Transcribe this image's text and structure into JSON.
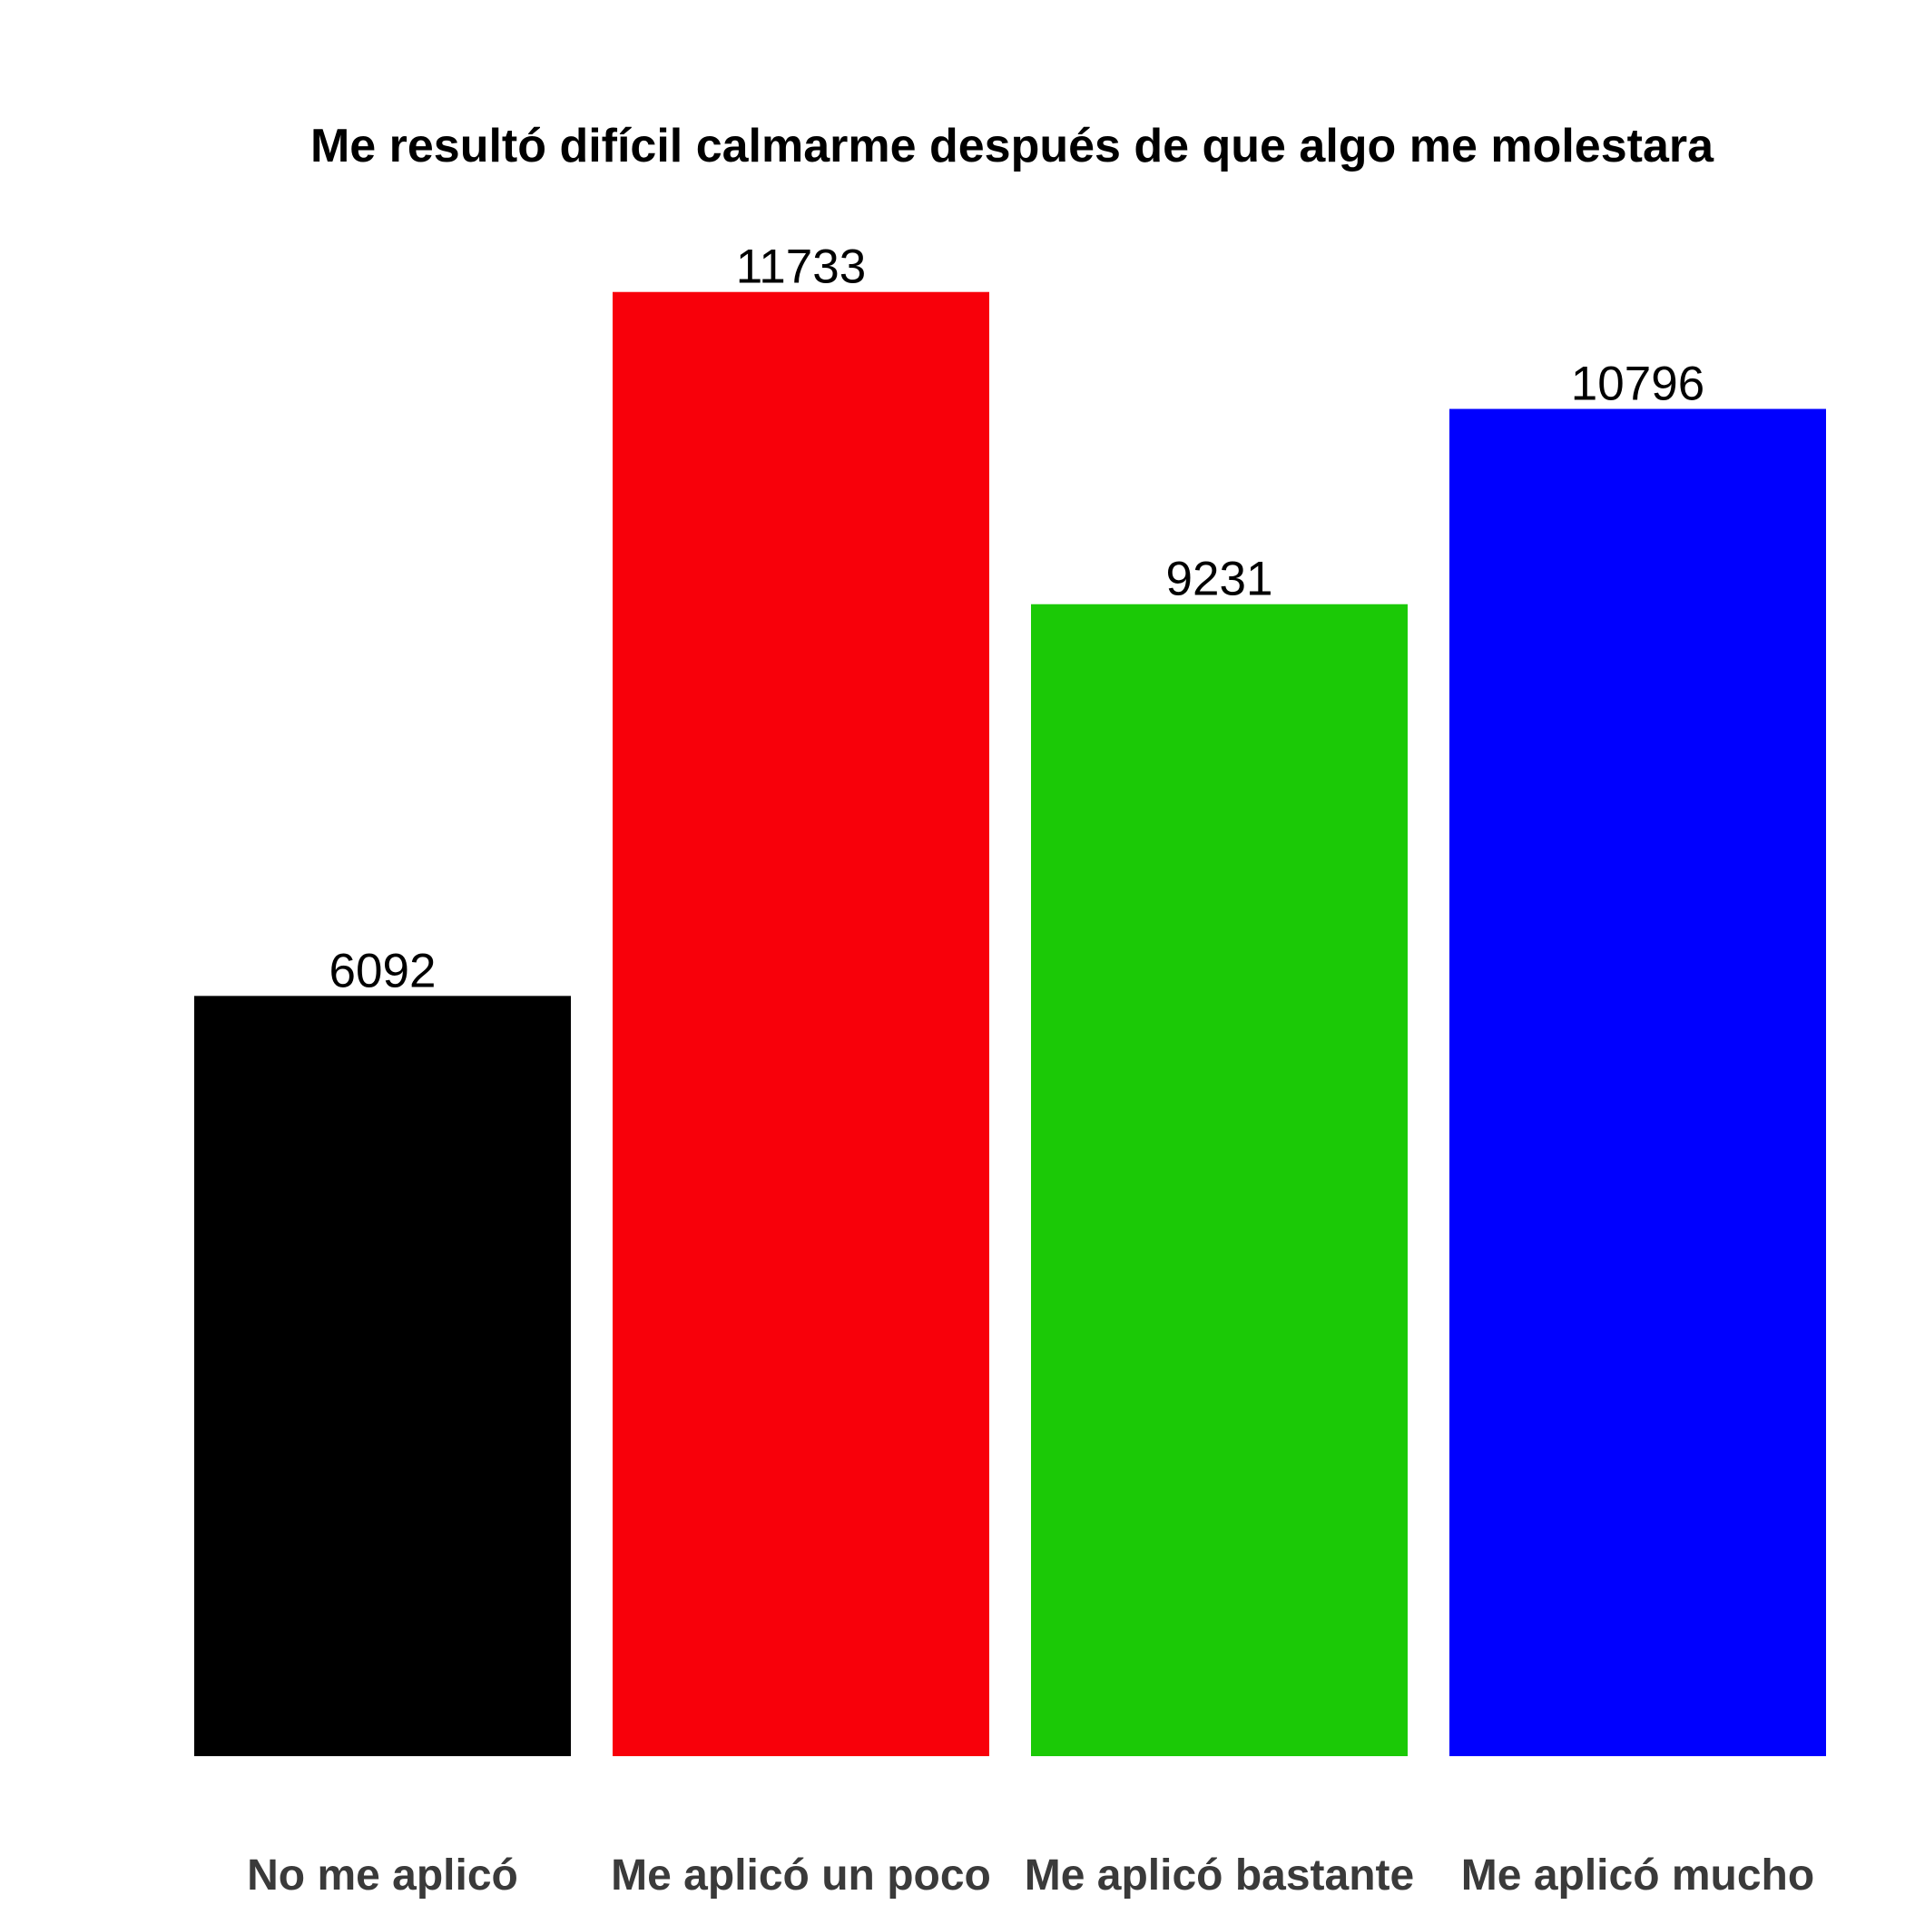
{
  "chart_data": {
    "type": "bar",
    "title": "Me resultó difícil calmarme después de que algo me molestara",
    "xlabel": "",
    "ylabel": "",
    "categories": [
      "No me aplicó",
      "Me aplicó un poco",
      "Me aplicó bastante",
      "Me aplicó mucho"
    ],
    "values": [
      6092,
      11733,
      9231,
      10796
    ],
    "colors": [
      "#000000",
      "#f8000a",
      "#1bc906",
      "#0000ff"
    ],
    "data_labels": [
      "6092",
      "11733",
      "9231",
      "10796"
    ],
    "ylim": [
      0,
      12400
    ],
    "grid": false,
    "legend": "none"
  }
}
